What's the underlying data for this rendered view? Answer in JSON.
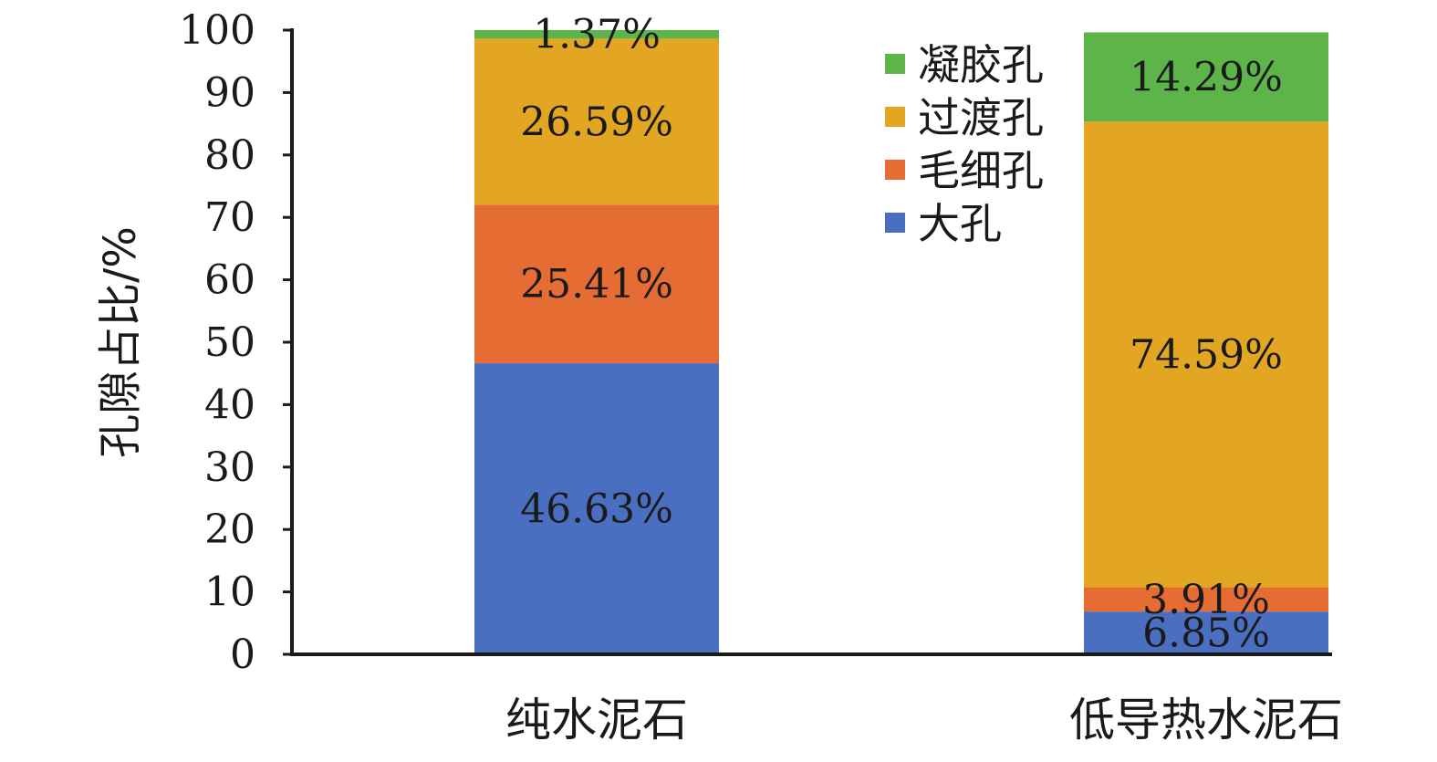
{
  "chart_data": {
    "type": "bar",
    "stacked": true,
    "categories": [
      "纯水泥石",
      "低导热水泥石"
    ],
    "series": [
      {
        "name": "大孔",
        "color": "#4a6fc1",
        "values": [
          46.63,
          6.85
        ],
        "labels": [
          "46.63%",
          "6.85%"
        ]
      },
      {
        "name": "毛细孔",
        "color": "#e56d33",
        "values": [
          25.41,
          3.91
        ],
        "labels": [
          "25.41%",
          "3.91%"
        ]
      },
      {
        "name": "过渡孔",
        "color": "#e2a623",
        "values": [
          26.59,
          74.59
        ],
        "labels": [
          "26.59%",
          "74.59%"
        ]
      },
      {
        "name": "凝胶孔",
        "color": "#5db54a",
        "values": [
          1.37,
          14.29
        ],
        "labels": [
          "1.37%",
          "14.29%"
        ]
      }
    ],
    "ylabel": "孔隙占比/%",
    "ylim": [
      0,
      100
    ],
    "yticks": [
      "0",
      "10",
      "20",
      "30",
      "40",
      "50",
      "60",
      "70",
      "80",
      "90",
      "100"
    ],
    "legend": {
      "position": "top-right",
      "order": [
        "凝胶孔",
        "过渡孔",
        "毛细孔",
        "大孔"
      ]
    },
    "grid": false
  }
}
